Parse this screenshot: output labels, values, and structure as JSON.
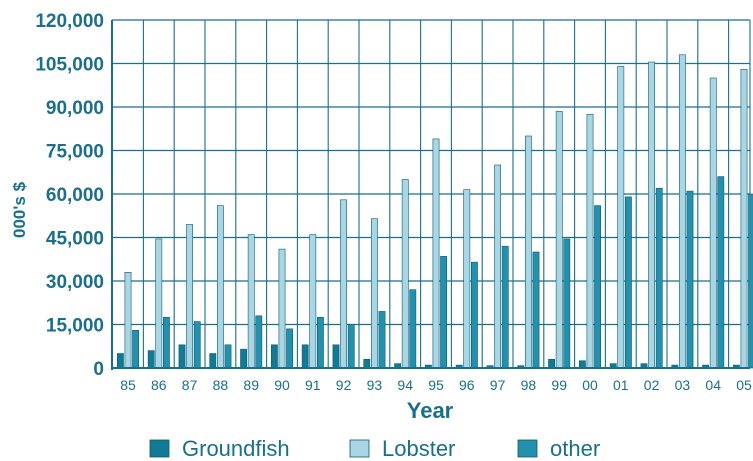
{
  "chart_data": {
    "type": "bar",
    "categories": [
      "85",
      "86",
      "87",
      "88",
      "89",
      "90",
      "91",
      "92",
      "93",
      "94",
      "95",
      "96",
      "97",
      "98",
      "99",
      "00",
      "01",
      "02",
      "03",
      "04",
      "05"
    ],
    "series": [
      {
        "name": "Groundfish",
        "color": "#137a96",
        "values": [
          5000,
          6000,
          8000,
          5000,
          6500,
          8000,
          8000,
          8000,
          3000,
          1500,
          1000,
          1000,
          800,
          800,
          3000,
          2500,
          1500,
          1500,
          1000,
          1000,
          1000
        ]
      },
      {
        "name": "Lobster",
        "color": "#a9d6e5",
        "values": [
          33000,
          44500,
          49500,
          56000,
          46000,
          41000,
          46000,
          58000,
          51500,
          65000,
          79000,
          61500,
          70000,
          80000,
          88500,
          87500,
          104000,
          105500,
          108000,
          100000,
          103000
        ]
      },
      {
        "name": "other",
        "color": "#2390ae",
        "values": [
          13000,
          17500,
          16000,
          8000,
          18000,
          13500,
          17500,
          15000,
          19500,
          27000,
          38500,
          36500,
          42000,
          40000,
          44500,
          56000,
          59000,
          62000,
          61000,
          66000,
          60000
        ]
      }
    ],
    "xlabel": "Year",
    "ylabel": "000's $",
    "ylim": [
      0,
      120000
    ],
    "yticks": [
      "0",
      "15,000",
      "30,000",
      "45,000",
      "60,000",
      "75,000",
      "90,000",
      "105,000",
      "120,000"
    ],
    "grid": true,
    "legend": "bottom"
  }
}
